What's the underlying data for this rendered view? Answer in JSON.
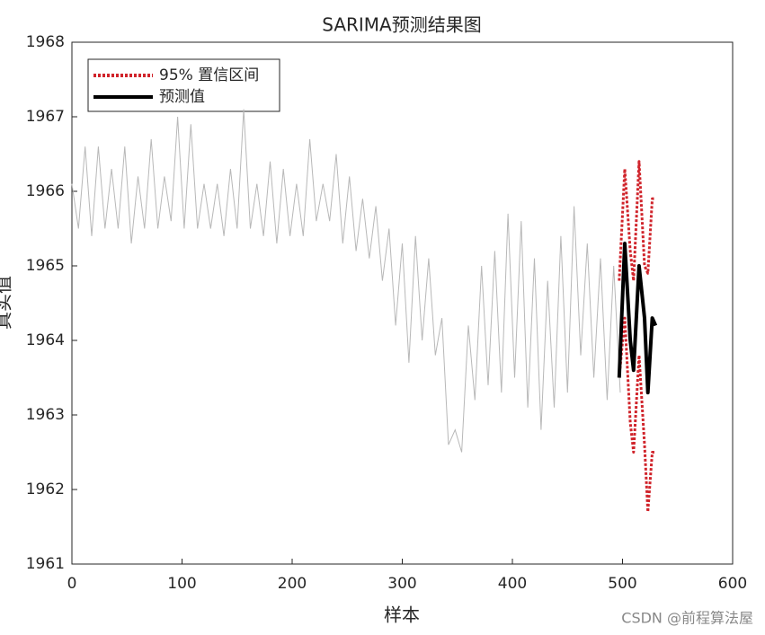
{
  "chart_data": {
    "type": "line",
    "title": "SARIMA预测结果图",
    "x_label": "样本",
    "y_label": "真实值",
    "watermark": "CSDN @前程算法屋",
    "xlim": [
      0,
      600
    ],
    "xticks": [
      0,
      100,
      200,
      300,
      400,
      500,
      600
    ],
    "ylim": [
      1961,
      1968
    ],
    "yticks": [
      1961,
      1962,
      1963,
      1964,
      1965,
      1966,
      1967,
      1968
    ],
    "grid": false,
    "legend": "upper left",
    "actual": {
      "color": "#b8b8b8",
      "x": [
        0,
        6,
        12,
        18,
        24,
        30,
        36,
        42,
        48,
        54,
        60,
        66,
        72,
        78,
        84,
        90,
        96,
        102,
        108,
        114,
        120,
        126,
        132,
        138,
        144,
        150,
        156,
        162,
        168,
        174,
        180,
        186,
        192,
        198,
        204,
        210,
        216,
        222,
        228,
        234,
        240,
        246,
        252,
        258,
        264,
        270,
        276,
        282,
        288,
        294,
        300,
        306,
        312,
        318,
        324,
        330,
        336,
        342,
        348,
        354,
        360,
        366,
        372,
        378,
        384,
        390,
        396,
        402,
        408,
        414,
        420,
        426,
        432,
        438,
        444,
        450,
        456,
        462,
        468,
        474,
        480,
        486,
        492,
        498
      ],
      "values": [
        1966.1,
        1965.5,
        1966.6,
        1965.4,
        1966.6,
        1965.5,
        1966.3,
        1965.5,
        1966.6,
        1965.3,
        1966.2,
        1965.5,
        1966.7,
        1965.5,
        1966.2,
        1965.6,
        1967.0,
        1965.5,
        1966.9,
        1965.5,
        1966.1,
        1965.5,
        1966.1,
        1965.4,
        1966.3,
        1965.5,
        1967.1,
        1965.5,
        1966.1,
        1965.4,
        1966.4,
        1965.3,
        1966.3,
        1965.4,
        1966.1,
        1965.4,
        1966.7,
        1965.6,
        1966.1,
        1965.6,
        1966.5,
        1965.3,
        1966.2,
        1965.2,
        1965.9,
        1965.1,
        1965.8,
        1964.8,
        1965.5,
        1964.2,
        1965.3,
        1963.7,
        1965.4,
        1964.0,
        1965.1,
        1963.8,
        1964.3,
        1962.6,
        1962.8,
        1962.5,
        1964.2,
        1963.2,
        1965.0,
        1963.4,
        1965.2,
        1963.3,
        1965.7,
        1963.5,
        1965.6,
        1963.1,
        1965.1,
        1962.8,
        1964.8,
        1963.1,
        1965.4,
        1963.3,
        1965.8,
        1963.8,
        1965.3,
        1963.5,
        1965.1,
        1963.2,
        1965.0,
        1963.3
      ]
    },
    "series": [
      {
        "name": "95% 置信区间",
        "color": "#d0242b",
        "dash": true,
        "x": [
          497,
          502,
          507,
          510,
          515,
          520,
          523,
          527,
          530
        ],
        "upper": [
          1964.8,
          1966.3,
          1965.2,
          1964.8,
          1966.4,
          1965.0,
          1964.9,
          1965.9,
          1965.9
        ],
        "lower": [
          1963.5,
          1964.3,
          1962.9,
          1962.5,
          1963.8,
          1962.6,
          1961.7,
          1962.5,
          1962.5
        ]
      },
      {
        "name": "预测值",
        "color": "#000000",
        "dash": false,
        "x": [
          497,
          502,
          507,
          510,
          515,
          520,
          523,
          527,
          530
        ],
        "values": [
          1963.5,
          1965.3,
          1964.0,
          1963.6,
          1965.0,
          1964.3,
          1963.3,
          1964.3,
          1964.2
        ]
      }
    ]
  }
}
